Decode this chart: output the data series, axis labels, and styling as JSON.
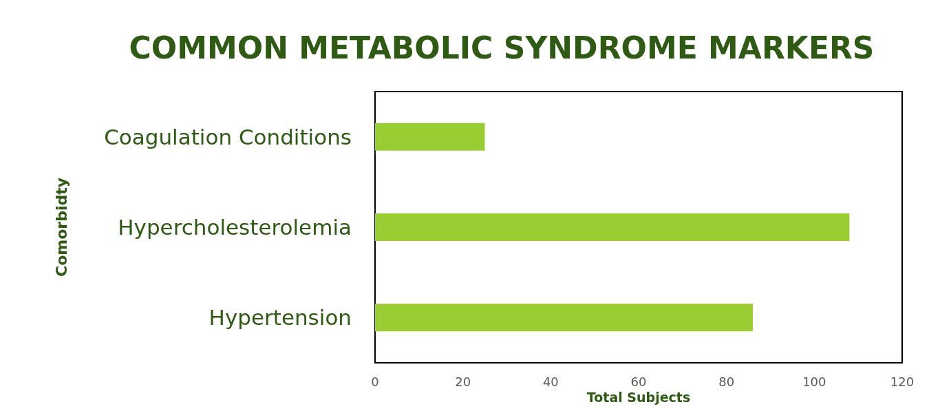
{
  "chart_data": {
    "type": "bar",
    "orientation": "horizontal",
    "title": "COMMON METABOLIC SYNDROME MARKERS",
    "xlabel": "Total Subjects",
    "ylabel": "Comorbidty",
    "categories": [
      "Coagulation Conditions",
      "Hypercholesterolemia",
      "Hypertension"
    ],
    "values": [
      25,
      108,
      86
    ],
    "color": "#9acd32",
    "xlim": [
      0,
      120
    ],
    "xticks": [
      0,
      20,
      40,
      60,
      80,
      100,
      120
    ],
    "grid": false
  }
}
